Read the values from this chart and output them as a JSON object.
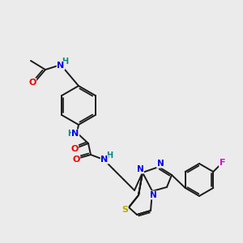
{
  "background_color": "#ebebeb",
  "bond_color": "#1a1a1a",
  "atom_colors": {
    "N": "#0000ee",
    "O": "#ee0000",
    "S": "#bbaa00",
    "F": "#dd00dd",
    "H": "#008888",
    "C": "#1a1a1a"
  },
  "figsize": [
    3.0,
    3.0
  ],
  "dpi": 100
}
